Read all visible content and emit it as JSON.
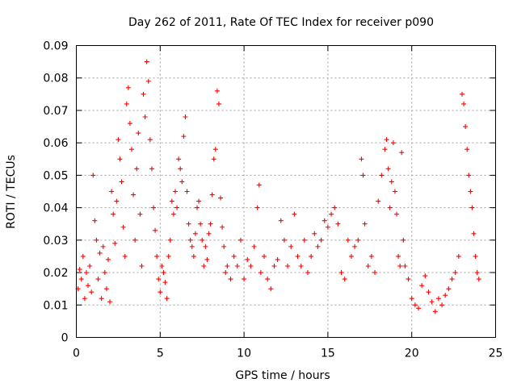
{
  "chart_data": {
    "type": "scatter",
    "title": "Day 262 of 2011, Rate Of TEC Index for receiver p090",
    "xlabel": "GPS time / hours",
    "ylabel": "ROTI / TECUs",
    "xlim": [
      0,
      25
    ],
    "ylim": [
      0,
      0.09
    ],
    "xticks": [
      0,
      5,
      10,
      15,
      20,
      25
    ],
    "xtick_labels": [
      "0",
      "5",
      "10",
      "15",
      "20",
      "25"
    ],
    "yticks": [
      0,
      0.01,
      0.02,
      0.03,
      0.04,
      0.05,
      0.06,
      0.07,
      0.08,
      0.09
    ],
    "ytick_labels": [
      "0",
      "0.01",
      "0.02",
      "0.03",
      "0.04",
      "0.05",
      "0.06",
      "0.07",
      "0.08",
      "0.09"
    ],
    "grid": true,
    "marker": "+",
    "color": "#ff0000",
    "series": [
      {
        "points": [
          [
            0.1,
            0.015
          ],
          [
            0.2,
            0.021
          ],
          [
            0.3,
            0.018
          ],
          [
            0.4,
            0.025
          ],
          [
            0.5,
            0.012
          ],
          [
            0.6,
            0.02
          ],
          [
            0.7,
            0.016
          ],
          [
            0.8,
            0.022
          ],
          [
            0.9,
            0.014
          ],
          [
            1.0,
            0.05
          ],
          [
            1.1,
            0.036
          ],
          [
            1.2,
            0.03
          ],
          [
            1.3,
            0.018
          ],
          [
            1.4,
            0.026
          ],
          [
            1.5,
            0.012
          ],
          [
            1.6,
            0.028
          ],
          [
            1.7,
            0.02
          ],
          [
            1.8,
            0.015
          ],
          [
            1.9,
            0.024
          ],
          [
            2.0,
            0.011
          ],
          [
            2.1,
            0.045
          ],
          [
            2.2,
            0.038
          ],
          [
            2.3,
            0.029
          ],
          [
            2.4,
            0.042
          ],
          [
            2.5,
            0.061
          ],
          [
            2.6,
            0.055
          ],
          [
            2.7,
            0.048
          ],
          [
            2.8,
            0.034
          ],
          [
            2.9,
            0.025
          ],
          [
            3.0,
            0.072
          ],
          [
            3.1,
            0.077
          ],
          [
            3.2,
            0.066
          ],
          [
            3.3,
            0.058
          ],
          [
            3.4,
            0.044
          ],
          [
            3.5,
            0.03
          ],
          [
            3.6,
            0.052
          ],
          [
            3.7,
            0.063
          ],
          [
            3.8,
            0.038
          ],
          [
            3.9,
            0.022
          ],
          [
            4.0,
            0.075
          ],
          [
            4.1,
            0.068
          ],
          [
            4.2,
            0.085
          ],
          [
            4.3,
            0.079
          ],
          [
            4.4,
            0.061
          ],
          [
            4.5,
            0.052
          ],
          [
            4.6,
            0.04
          ],
          [
            4.7,
            0.033
          ],
          [
            4.8,
            0.025
          ],
          [
            4.9,
            0.018
          ],
          [
            5.0,
            0.014
          ],
          [
            5.1,
            0.022
          ],
          [
            5.2,
            0.02
          ],
          [
            5.3,
            0.017
          ],
          [
            5.4,
            0.012
          ],
          [
            5.5,
            0.025
          ],
          [
            5.6,
            0.03
          ],
          [
            5.7,
            0.042
          ],
          [
            5.8,
            0.038
          ],
          [
            5.9,
            0.045
          ],
          [
            6.0,
            0.04
          ],
          [
            6.1,
            0.055
          ],
          [
            6.2,
            0.052
          ],
          [
            6.3,
            0.048
          ],
          [
            6.4,
            0.062
          ],
          [
            6.5,
            0.068
          ],
          [
            6.6,
            0.045
          ],
          [
            6.7,
            0.035
          ],
          [
            6.8,
            0.03
          ],
          [
            6.9,
            0.028
          ],
          [
            7.0,
            0.025
          ],
          [
            7.1,
            0.032
          ],
          [
            7.2,
            0.04
          ],
          [
            7.3,
            0.042
          ],
          [
            7.4,
            0.035
          ],
          [
            7.5,
            0.03
          ],
          [
            7.6,
            0.022
          ],
          [
            7.7,
            0.028
          ],
          [
            7.8,
            0.024
          ],
          [
            7.9,
            0.032
          ],
          [
            8.0,
            0.035
          ],
          [
            8.1,
            0.044
          ],
          [
            8.2,
            0.055
          ],
          [
            8.3,
            0.058
          ],
          [
            8.4,
            0.076
          ],
          [
            8.5,
            0.072
          ],
          [
            8.6,
            0.043
          ],
          [
            8.7,
            0.034
          ],
          [
            8.8,
            0.028
          ],
          [
            8.9,
            0.02
          ],
          [
            9.0,
            0.022
          ],
          [
            9.2,
            0.018
          ],
          [
            9.4,
            0.025
          ],
          [
            9.6,
            0.022
          ],
          [
            9.8,
            0.03
          ],
          [
            10.0,
            0.018
          ],
          [
            10.2,
            0.024
          ],
          [
            10.4,
            0.022
          ],
          [
            10.6,
            0.028
          ],
          [
            10.8,
            0.04
          ],
          [
            10.9,
            0.047
          ],
          [
            11.0,
            0.02
          ],
          [
            11.2,
            0.025
          ],
          [
            11.4,
            0.018
          ],
          [
            11.6,
            0.015
          ],
          [
            11.8,
            0.022
          ],
          [
            12.0,
            0.024
          ],
          [
            12.2,
            0.036
          ],
          [
            12.4,
            0.03
          ],
          [
            12.6,
            0.022
          ],
          [
            12.8,
            0.028
          ],
          [
            13.0,
            0.038
          ],
          [
            13.2,
            0.025
          ],
          [
            13.4,
            0.022
          ],
          [
            13.6,
            0.03
          ],
          [
            13.8,
            0.02
          ],
          [
            14.0,
            0.025
          ],
          [
            14.2,
            0.032
          ],
          [
            14.4,
            0.028
          ],
          [
            14.6,
            0.03
          ],
          [
            14.8,
            0.036
          ],
          [
            15.0,
            0.034
          ],
          [
            15.2,
            0.038
          ],
          [
            15.4,
            0.04
          ],
          [
            15.6,
            0.035
          ],
          [
            15.8,
            0.02
          ],
          [
            16.0,
            0.018
          ],
          [
            16.2,
            0.03
          ],
          [
            16.4,
            0.025
          ],
          [
            16.6,
            0.028
          ],
          [
            16.8,
            0.03
          ],
          [
            17.0,
            0.055
          ],
          [
            17.1,
            0.05
          ],
          [
            17.2,
            0.035
          ],
          [
            17.4,
            0.022
          ],
          [
            17.6,
            0.025
          ],
          [
            17.8,
            0.02
          ],
          [
            18.0,
            0.042
          ],
          [
            18.2,
            0.05
          ],
          [
            18.4,
            0.058
          ],
          [
            18.5,
            0.061
          ],
          [
            18.6,
            0.052
          ],
          [
            18.7,
            0.04
          ],
          [
            18.8,
            0.048
          ],
          [
            18.9,
            0.06
          ],
          [
            19.0,
            0.045
          ],
          [
            19.1,
            0.038
          ],
          [
            19.2,
            0.025
          ],
          [
            19.3,
            0.022
          ],
          [
            19.4,
            0.057
          ],
          [
            19.5,
            0.03
          ],
          [
            19.6,
            0.022
          ],
          [
            19.8,
            0.018
          ],
          [
            20.0,
            0.012
          ],
          [
            20.2,
            0.01
          ],
          [
            20.4,
            0.009
          ],
          [
            20.6,
            0.016
          ],
          [
            20.8,
            0.019
          ],
          [
            21.0,
            0.014
          ],
          [
            21.2,
            0.011
          ],
          [
            21.4,
            0.008
          ],
          [
            21.6,
            0.012
          ],
          [
            21.8,
            0.01
          ],
          [
            22.0,
            0.013
          ],
          [
            22.2,
            0.015
          ],
          [
            22.4,
            0.018
          ],
          [
            22.6,
            0.02
          ],
          [
            22.8,
            0.025
          ],
          [
            23.0,
            0.075
          ],
          [
            23.1,
            0.072
          ],
          [
            23.2,
            0.065
          ],
          [
            23.3,
            0.058
          ],
          [
            23.4,
            0.05
          ],
          [
            23.5,
            0.045
          ],
          [
            23.6,
            0.04
          ],
          [
            23.7,
            0.032
          ],
          [
            23.8,
            0.025
          ],
          [
            23.9,
            0.02
          ],
          [
            24.0,
            0.018
          ]
        ]
      }
    ]
  }
}
